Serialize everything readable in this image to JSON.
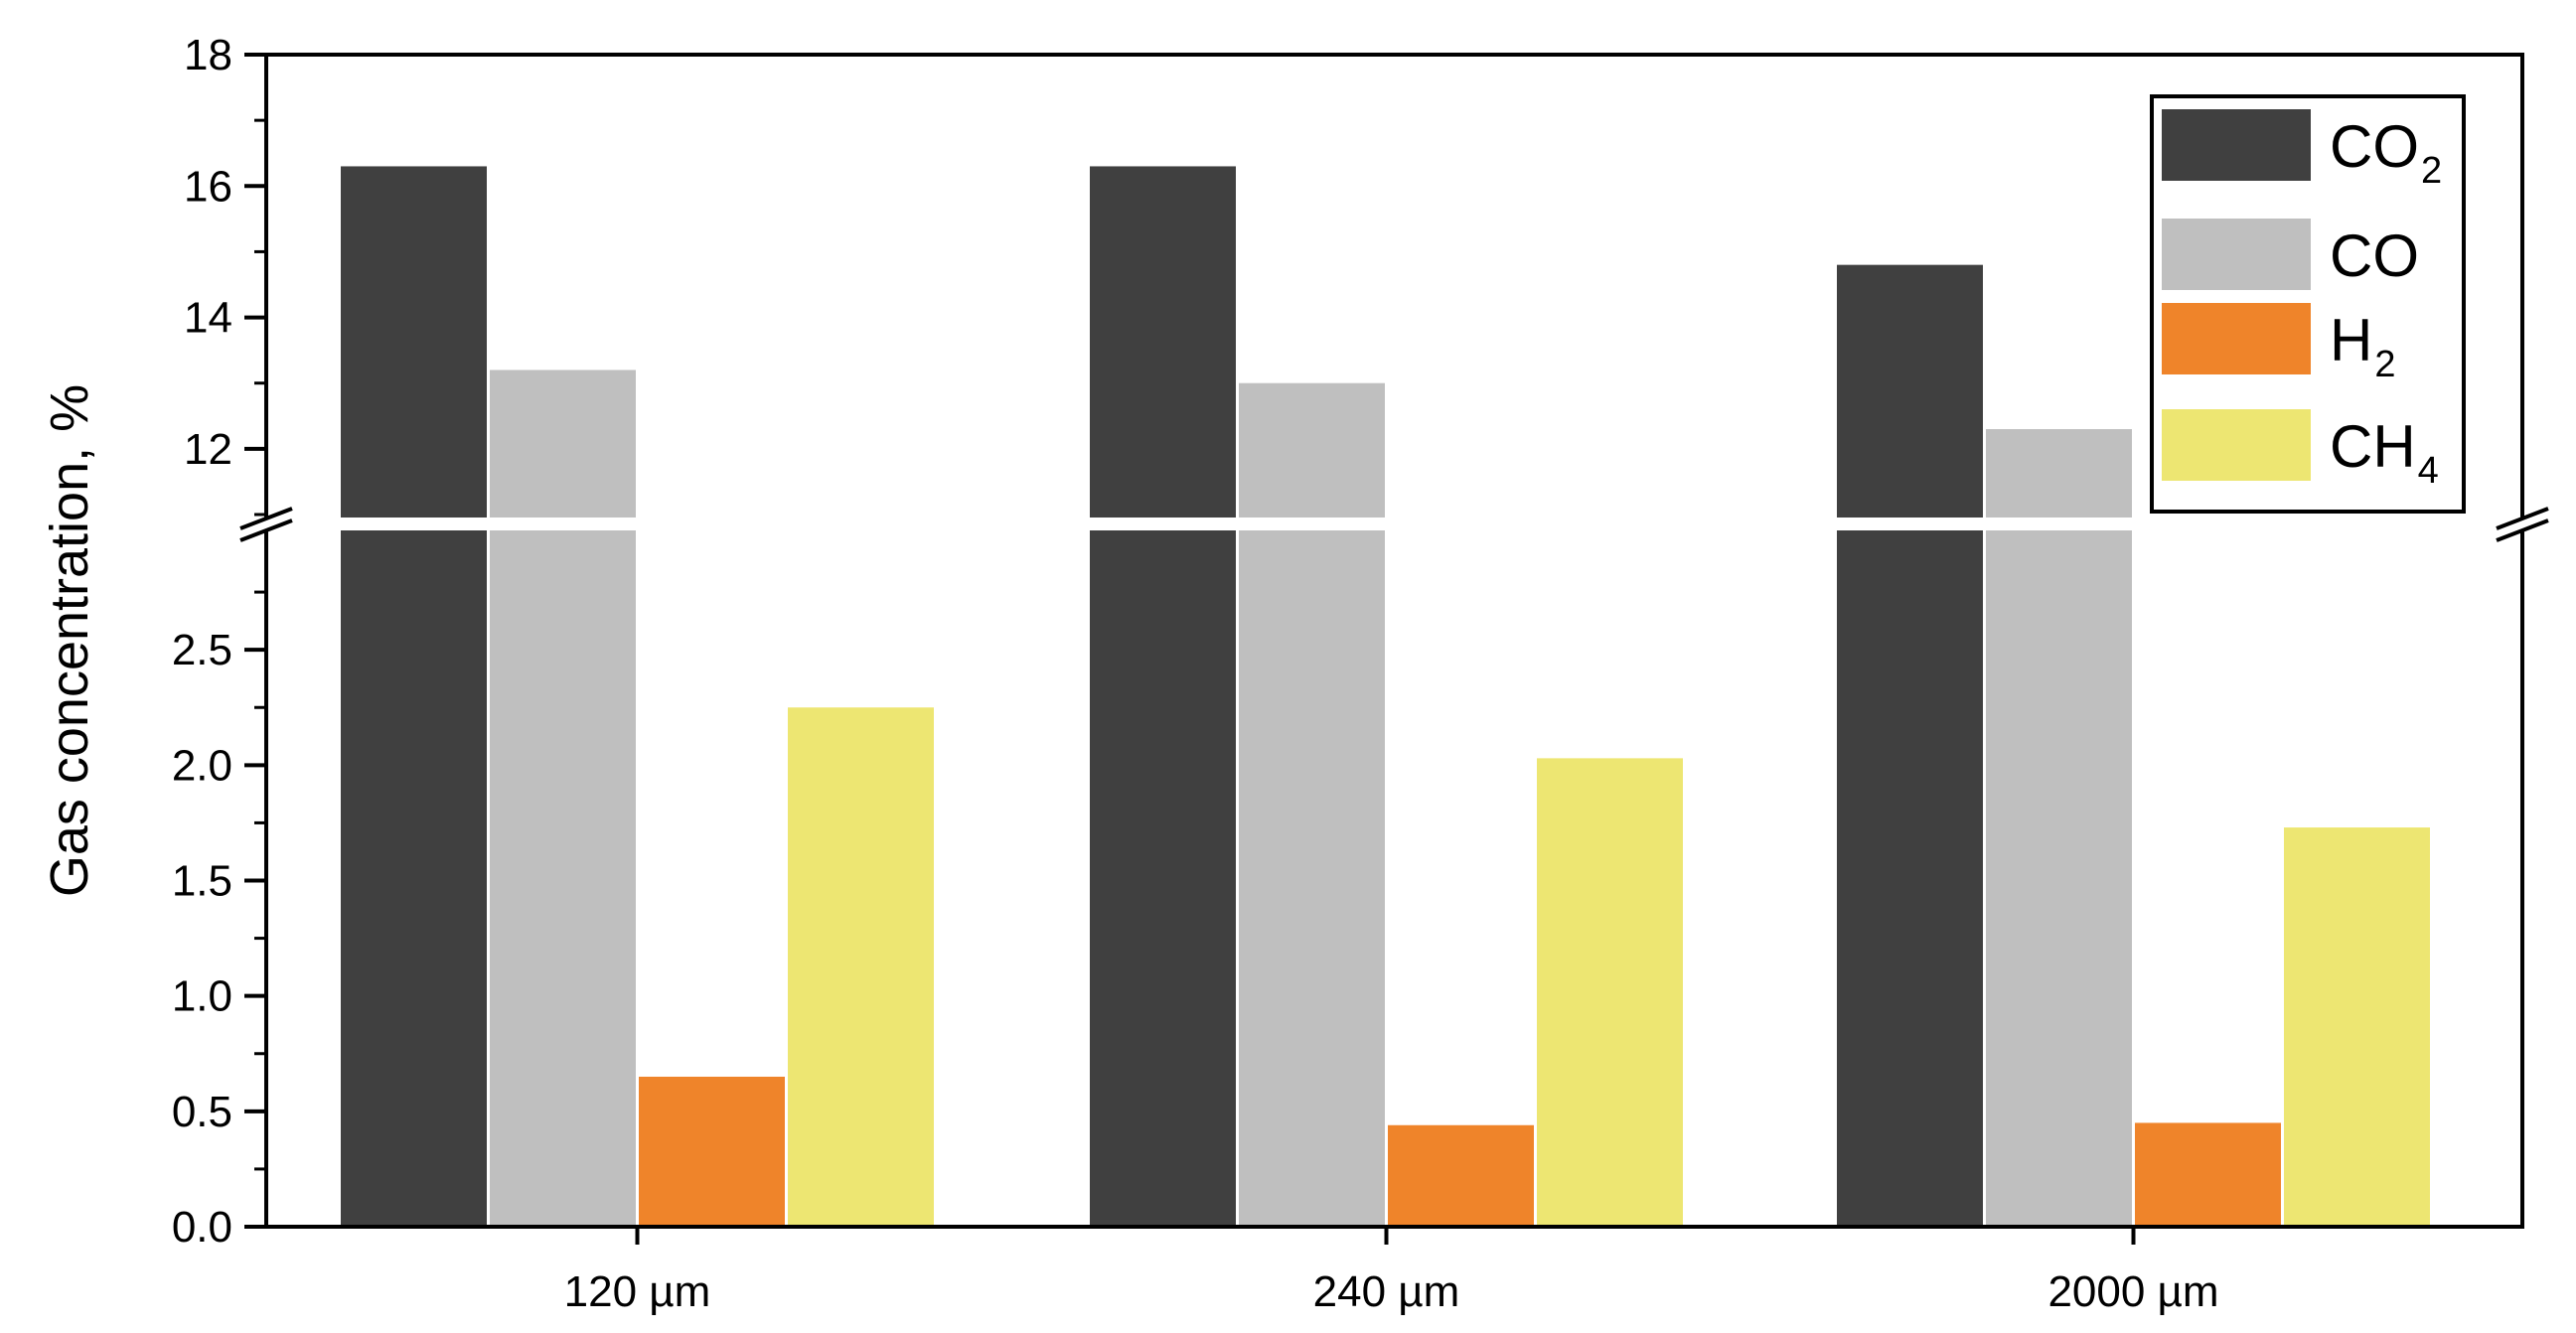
{
  "chart_data": {
    "type": "bar",
    "title": "",
    "xlabel": "",
    "ylabel": "Gas concentration,  %",
    "categories": [
      "120 µm",
      "240 µm",
      "2000 µm"
    ],
    "series": [
      {
        "name": "CO",
        "subscript": "2",
        "color": "#404040",
        "values": [
          16.3,
          16.3,
          14.8
        ]
      },
      {
        "name": "CO",
        "subscript": "",
        "color": "#bfbfbf",
        "values": [
          13.2,
          13.0,
          12.3
        ]
      },
      {
        "name": "H",
        "subscript": "2",
        "color": "#ef842a",
        "values": [
          0.65,
          0.44,
          0.45
        ]
      },
      {
        "name": "CH",
        "subscript": "4",
        "color": "#ede672",
        "values": [
          2.25,
          2.03,
          1.73
        ]
      }
    ],
    "axis_break": true,
    "lower_ylim": [
      0,
      3.0
    ],
    "upper_ylim": [
      11.0,
      18
    ],
    "lower_yticks": [
      "0.0",
      "0.5",
      "1.0",
      "1.5",
      "2.0",
      "2.5"
    ],
    "upper_yticks": [
      "12",
      "14",
      "16",
      "18"
    ],
    "legend_position": "top-right",
    "grid": false
  }
}
